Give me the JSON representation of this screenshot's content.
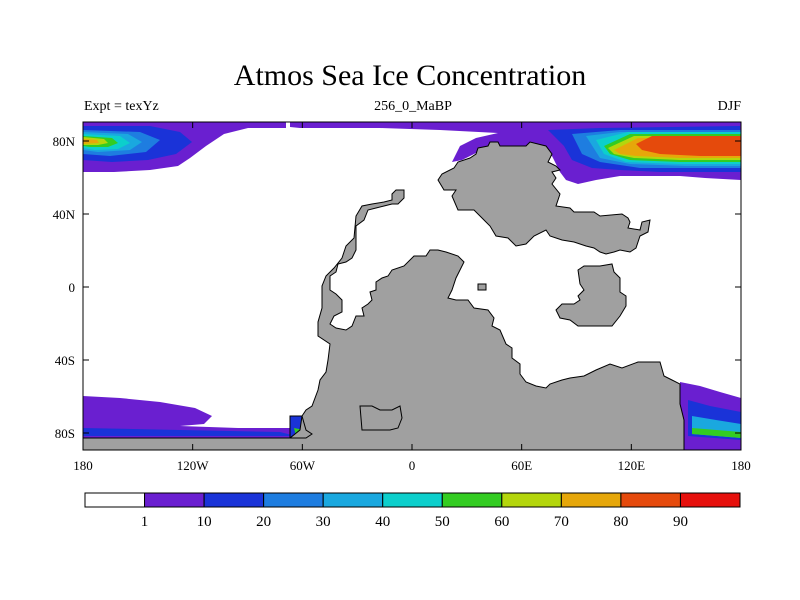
{
  "map": {
    "title": "Atmos Sea Ice Concentration",
    "subtitle_left": "Expt = texYz",
    "subtitle_center": "256_0_MaBP",
    "subtitle_right": "DJF",
    "lon_tick_labels": [
      "180",
      "120W",
      "60W",
      "0",
      "60E",
      "120E",
      "180"
    ],
    "lat_tick_labels": [
      "80N",
      "40N",
      "0",
      "40S",
      "80S"
    ],
    "land_color": "#a0a0a0",
    "colorbar": {
      "colors": [
        "#ffffff",
        "#6a1fd0",
        "#1a33d8",
        "#1e7de0",
        "#1aa8df",
        "#0ccfcc",
        "#33cc22",
        "#b4d60c",
        "#e6a70a",
        "#e54a0c",
        "#e6100c"
      ],
      "labels": [
        "1",
        "10",
        "20",
        "30",
        "40",
        "50",
        "60",
        "70",
        "80",
        "90"
      ]
    }
  }
}
